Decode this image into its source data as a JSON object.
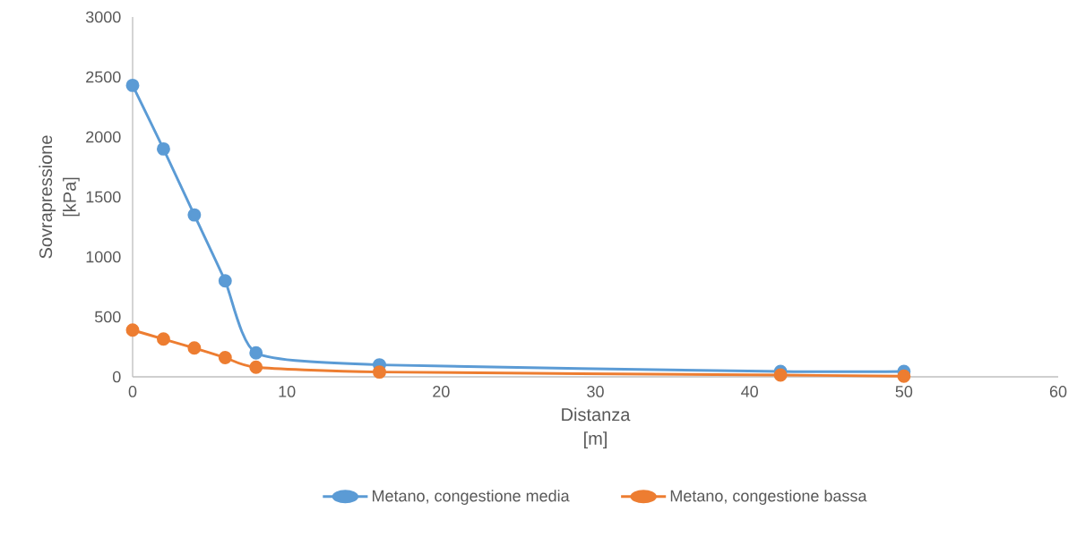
{
  "chart_data": {
    "type": "line",
    "xlabel": "Distanza [m]",
    "ylabel": "Sovrapressione [kPa]",
    "x": [
      0,
      2,
      4,
      6,
      8,
      16,
      42,
      50
    ],
    "series": [
      {
        "name": "Metano, congestione media",
        "color": "#5b9bd5",
        "values": [
          2430,
          1900,
          1350,
          800,
          200,
          100,
          45,
          45
        ]
      },
      {
        "name": "Metano, congestione bassa",
        "color": "#ed7d31",
        "values": [
          390,
          315,
          240,
          160,
          80,
          40,
          15,
          5
        ]
      }
    ],
    "xlim": [
      0,
      60
    ],
    "xticks": [
      0,
      10,
      20,
      30,
      40,
      50,
      60
    ],
    "ylim": [
      0,
      3000
    ],
    "yticks": [
      0,
      500,
      1000,
      1500,
      2000,
      2500,
      3000
    ],
    "grid": false,
    "legend": "bottom",
    "marker": "circle",
    "line_style": "solid"
  }
}
